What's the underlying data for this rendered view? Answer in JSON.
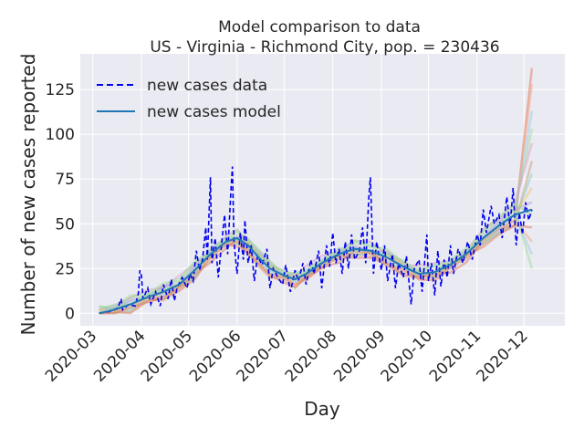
{
  "chart_data": {
    "type": "line",
    "title_line1": "Model comparison to data",
    "title_line2": "US - Virginia - Richmond City, pop. = 230436",
    "xlabel": "Day",
    "ylabel": "Number of new cases reported",
    "x_ticks": [
      "2020-03",
      "2020-04",
      "2020-05",
      "2020-06",
      "2020-07",
      "2020-08",
      "2020-09",
      "2020-10",
      "2020-11",
      "2020-12"
    ],
    "y_ticks": [
      0,
      25,
      50,
      75,
      100,
      125
    ],
    "xlim": [
      "2020-02-22",
      "2020-12-27"
    ],
    "ylim": [
      -7,
      145
    ],
    "grid": true,
    "legend_position": "upper-left",
    "legend": [
      {
        "label": "new cases data",
        "style": "dashed",
        "color": "#0000ee"
      },
      {
        "label": "new cases model",
        "style": "solid",
        "color": "#1f77b4"
      }
    ],
    "colors": {
      "background": "#eaeaf2",
      "grid": "#ffffff",
      "data": "#0000ee",
      "model": "#1f77b4",
      "ensemble": [
        "#e07a5f",
        "#f4a582",
        "#9ecae1",
        "#a1d99b",
        "#d9a0c9",
        "#c7a17a",
        "#8ecfc9",
        "#f2c46d",
        "#b39ddb",
        "#98df8a"
      ]
    },
    "data_series": [
      [
        "2020-03-05",
        0
      ],
      [
        "2020-03-12",
        1
      ],
      [
        "2020-03-17",
        3
      ],
      [
        "2020-03-19",
        8
      ],
      [
        "2020-03-20",
        2
      ],
      [
        "2020-03-24",
        5
      ],
      [
        "2020-03-28",
        4
      ],
      [
        "2020-03-30",
        11
      ],
      [
        "2020-03-31",
        24
      ],
      [
        "2020-04-01",
        21
      ],
      [
        "2020-04-02",
        8
      ],
      [
        "2020-04-05",
        14
      ],
      [
        "2020-04-07",
        5
      ],
      [
        "2020-04-10",
        12
      ],
      [
        "2020-04-13",
        4
      ],
      [
        "2020-04-15",
        16
      ],
      [
        "2020-04-18",
        8
      ],
      [
        "2020-04-20",
        19
      ],
      [
        "2020-04-22",
        7
      ],
      [
        "2020-04-24",
        15
      ],
      [
        "2020-04-27",
        20
      ],
      [
        "2020-04-30",
        14
      ],
      [
        "2020-05-02",
        22
      ],
      [
        "2020-05-04",
        18
      ],
      [
        "2020-05-06",
        35
      ],
      [
        "2020-05-08",
        24
      ],
      [
        "2020-05-10",
        30
      ],
      [
        "2020-05-12",
        48
      ],
      [
        "2020-05-13",
        30
      ],
      [
        "2020-05-15",
        76
      ],
      [
        "2020-05-16",
        28
      ],
      [
        "2020-05-18",
        42
      ],
      [
        "2020-05-20",
        20
      ],
      [
        "2020-05-22",
        38
      ],
      [
        "2020-05-24",
        55
      ],
      [
        "2020-05-26",
        33
      ],
      [
        "2020-05-28",
        68
      ],
      [
        "2020-05-29",
        82
      ],
      [
        "2020-05-30",
        40
      ],
      [
        "2020-06-01",
        22
      ],
      [
        "2020-06-03",
        45
      ],
      [
        "2020-06-05",
        30
      ],
      [
        "2020-06-06",
        52
      ],
      [
        "2020-06-08",
        28
      ],
      [
        "2020-06-10",
        38
      ],
      [
        "2020-06-12",
        18
      ],
      [
        "2020-06-14",
        32
      ],
      [
        "2020-06-17",
        27
      ],
      [
        "2020-06-20",
        36
      ],
      [
        "2020-06-22",
        14
      ],
      [
        "2020-06-24",
        25
      ],
      [
        "2020-06-27",
        20
      ],
      [
        "2020-06-30",
        16
      ],
      [
        "2020-07-02",
        27
      ],
      [
        "2020-07-05",
        12
      ],
      [
        "2020-07-08",
        24
      ],
      [
        "2020-07-10",
        18
      ],
      [
        "2020-07-13",
        28
      ],
      [
        "2020-07-15",
        16
      ],
      [
        "2020-07-18",
        30
      ],
      [
        "2020-07-20",
        22
      ],
      [
        "2020-07-23",
        35
      ],
      [
        "2020-07-25",
        14
      ],
      [
        "2020-07-28",
        38
      ],
      [
        "2020-07-30",
        26
      ],
      [
        "2020-08-01",
        45
      ],
      [
        "2020-08-03",
        28
      ],
      [
        "2020-08-05",
        36
      ],
      [
        "2020-08-07",
        22
      ],
      [
        "2020-08-09",
        40
      ],
      [
        "2020-08-11",
        25
      ],
      [
        "2020-08-13",
        44
      ],
      [
        "2020-08-15",
        30
      ],
      [
        "2020-08-18",
        35
      ],
      [
        "2020-08-20",
        48
      ],
      [
        "2020-08-22",
        28
      ],
      [
        "2020-08-24",
        65
      ],
      [
        "2020-08-25",
        76
      ],
      [
        "2020-08-27",
        22
      ],
      [
        "2020-08-29",
        40
      ],
      [
        "2020-09-01",
        24
      ],
      [
        "2020-09-03",
        38
      ],
      [
        "2020-09-05",
        18
      ],
      [
        "2020-09-08",
        33
      ],
      [
        "2020-09-10",
        14
      ],
      [
        "2020-09-12",
        28
      ],
      [
        "2020-09-15",
        20
      ],
      [
        "2020-09-17",
        32
      ],
      [
        "2020-09-20",
        5
      ],
      [
        "2020-09-22",
        25
      ],
      [
        "2020-09-25",
        30
      ],
      [
        "2020-09-27",
        12
      ],
      [
        "2020-09-30",
        44
      ],
      [
        "2020-10-01",
        18
      ],
      [
        "2020-10-03",
        28
      ],
      [
        "2020-10-05",
        10
      ],
      [
        "2020-10-07",
        35
      ],
      [
        "2020-10-09",
        15
      ],
      [
        "2020-10-11",
        30
      ],
      [
        "2020-10-13",
        20
      ],
      [
        "2020-10-15",
        38
      ],
      [
        "2020-10-17",
        22
      ],
      [
        "2020-10-20",
        36
      ],
      [
        "2020-10-23",
        28
      ],
      [
        "2020-10-26",
        40
      ],
      [
        "2020-10-29",
        30
      ],
      [
        "2020-11-01",
        44
      ],
      [
        "2020-11-03",
        38
      ],
      [
        "2020-11-05",
        58
      ],
      [
        "2020-11-07",
        45
      ],
      [
        "2020-11-10",
        60
      ],
      [
        "2020-11-12",
        50
      ],
      [
        "2020-11-15",
        55
      ],
      [
        "2020-11-17",
        42
      ],
      [
        "2020-11-20",
        65
      ],
      [
        "2020-11-22",
        48
      ],
      [
        "2020-11-24",
        70
      ],
      [
        "2020-11-26",
        38
      ],
      [
        "2020-11-28",
        56
      ],
      [
        "2020-11-30",
        44
      ],
      [
        "2020-12-02",
        62
      ],
      [
        "2020-12-04",
        52
      ],
      [
        "2020-12-06",
        58
      ]
    ],
    "model_series": [
      [
        "2020-03-05",
        0
      ],
      [
        "2020-03-15",
        2
      ],
      [
        "2020-03-25",
        5
      ],
      [
        "2020-04-05",
        9
      ],
      [
        "2020-04-15",
        12
      ],
      [
        "2020-04-25",
        16
      ],
      [
        "2020-05-05",
        24
      ],
      [
        "2020-05-15",
        33
      ],
      [
        "2020-05-25",
        40
      ],
      [
        "2020-06-01",
        42
      ],
      [
        "2020-06-08",
        38
      ],
      [
        "2020-06-15",
        31
      ],
      [
        "2020-06-22",
        25
      ],
      [
        "2020-07-01",
        21
      ],
      [
        "2020-07-08",
        19
      ],
      [
        "2020-07-15",
        22
      ],
      [
        "2020-07-25",
        28
      ],
      [
        "2020-08-05",
        33
      ],
      [
        "2020-08-15",
        36
      ],
      [
        "2020-08-25",
        35
      ],
      [
        "2020-09-05",
        31
      ],
      [
        "2020-09-15",
        26
      ],
      [
        "2020-09-25",
        22
      ],
      [
        "2020-10-05",
        23
      ],
      [
        "2020-10-15",
        27
      ],
      [
        "2020-10-25",
        33
      ],
      [
        "2020-11-05",
        42
      ],
      [
        "2020-11-15",
        49
      ],
      [
        "2020-11-25",
        55
      ],
      [
        "2020-12-06",
        58
      ]
    ],
    "ensemble_tail_end_values": [
      137,
      128,
      113,
      103,
      95,
      85,
      78,
      70,
      62,
      55,
      48,
      40,
      33,
      25
    ]
  }
}
